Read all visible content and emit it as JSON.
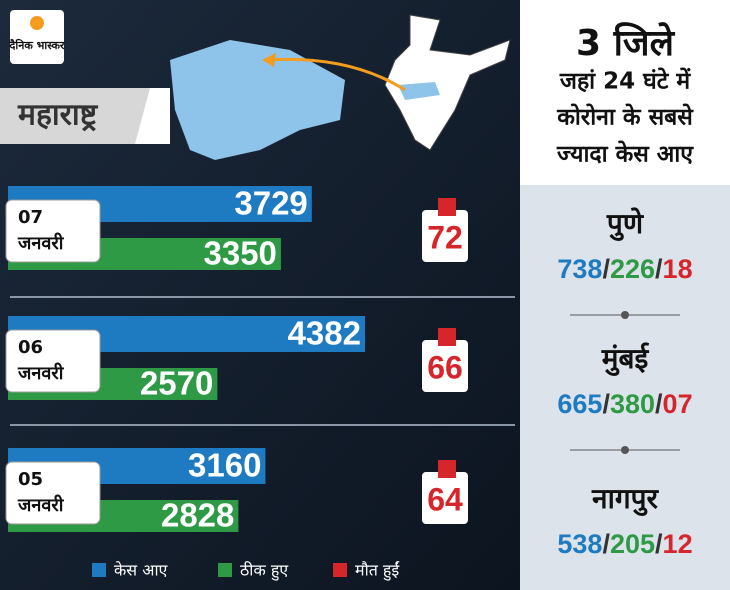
{
  "logo": "दैनिक भास्कर",
  "region": "महाराष्ट्र",
  "chart_data": {
    "type": "bar",
    "orientation": "horizontal",
    "categories": [
      "07\nजनवरी",
      "06\nजनवरी",
      "05\nजनवरी"
    ],
    "series": [
      {
        "name": "केस आए",
        "color": "#1f7bc1",
        "values": [
          3729,
          4382,
          3160
        ]
      },
      {
        "name": "ठीक हुए",
        "color": "#2e9a45",
        "values": [
          3350,
          2570,
          2828
        ]
      },
      {
        "name": "मौत हुईं",
        "color": "#d6252b",
        "values": [
          72,
          66,
          64
        ]
      }
    ]
  },
  "panel": {
    "title": "3 जिले",
    "subtitle": [
      "जहां 24 घंटे में",
      "कोरोना के सबसे",
      "ज्यादा केस आए"
    ],
    "separator": "/",
    "districts": [
      {
        "name": "पुणे",
        "numbers": [
          "738",
          "226",
          "18"
        ]
      },
      {
        "name": "मुंबई",
        "numbers": [
          "665",
          "380",
          "07"
        ]
      },
      {
        "name": "नागपुर",
        "numbers": [
          "538",
          "205",
          "12"
        ]
      }
    ]
  }
}
